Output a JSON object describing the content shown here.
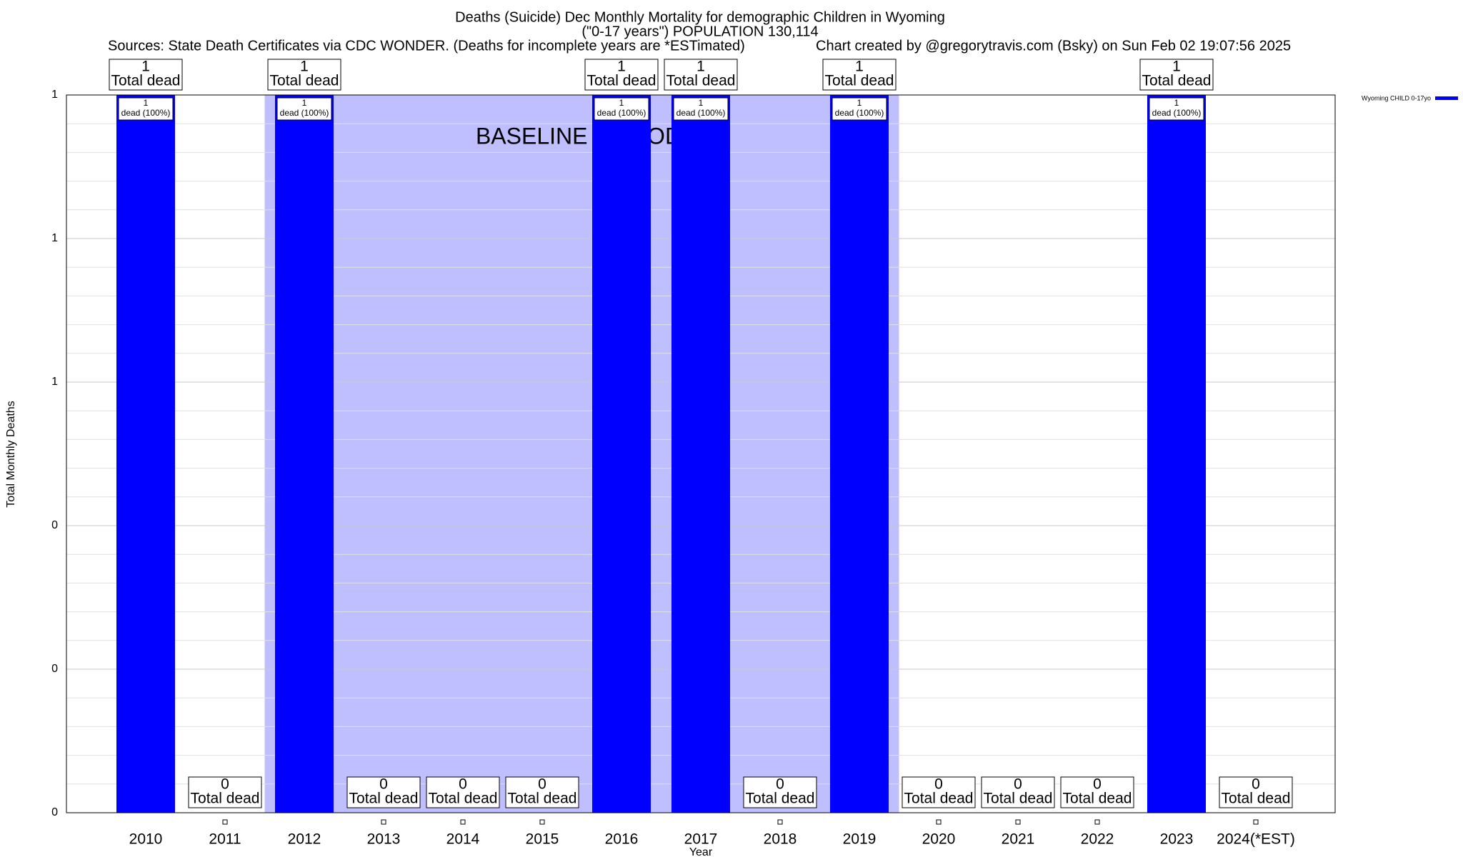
{
  "chart_data": {
    "type": "bar",
    "title": "Deaths (Suicide) Dec Monthly Mortality for demographic Children in Wyoming",
    "subtitle": "(\"0-17 years\") POPULATION 130,114",
    "source": "Sources: State Death Certificates via CDC WONDER. (Deaths for incomplete years are *ESTimated)",
    "credit": "Chart created by @gregorytravis.com (Bsky) on Sun Feb 02 19:07:56 2025",
    "x_label": "Year",
    "y_label": "Total Monthly Deaths",
    "categories": [
      "2010",
      "2011",
      "2012",
      "2013",
      "2014",
      "2015",
      "2016",
      "2017",
      "2018",
      "2019",
      "2020",
      "2021",
      "2022",
      "2023",
      "2024(*EST)"
    ],
    "series": [
      {
        "name": "Wyoming CHILD 0-17yo",
        "color": "#0000ff",
        "values": [
          1,
          0,
          1,
          0,
          0,
          0,
          1,
          1,
          0,
          1,
          0,
          0,
          0,
          1,
          0
        ]
      }
    ],
    "total_label_text": "Total dead",
    "bar_label_text": "dead (100%)",
    "ylim": [
      0,
      1
    ],
    "yticks": [
      0,
      {
        "value": 0.2,
        "label": "0"
      },
      {
        "value": 0.4,
        "label": "0"
      },
      {
        "value": 0.6,
        "label": "1"
      },
      {
        "value": 0.8,
        "label": "1"
      },
      1
    ],
    "grid": true,
    "minor_grid": 5,
    "legend": "top-right",
    "baseline": {
      "label": "BASELINE PERIOD",
      "from": "2012",
      "to": "2019",
      "color": "#bfbfff"
    }
  }
}
